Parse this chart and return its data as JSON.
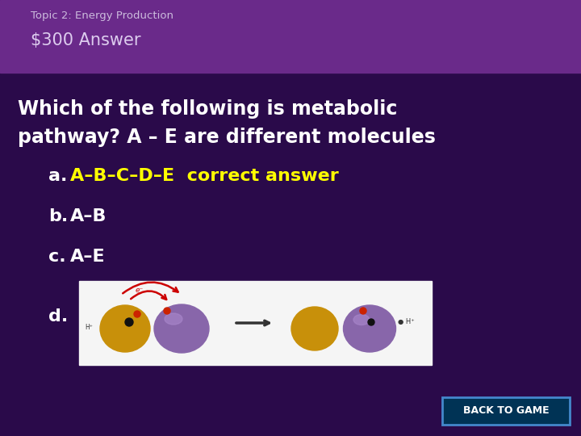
{
  "bg_color": "#2a0a4a",
  "header_band_color": "#6a2a8a",
  "header_text1": "Topic 2: Energy Production",
  "header_text2": "$300 Answer",
  "header_text1_color": "#ccbbdd",
  "header_text2_color": "#ddccee",
  "question_line1": "Which of the following is metabolic",
  "question_line2": "pathway? A – E are different molecules",
  "question_color": "#ffffff",
  "opt_a_label": "a.",
  "opt_a_chain": "A–B–C–D–E",
  "opt_a_suffix": "  correct answer",
  "opt_a_yellow": "#ffff00",
  "opt_b_label": "b.",
  "opt_b_chain": "A–B",
  "opt_c_label": "c.",
  "opt_c_chain": "A–E",
  "opt_d_label": "d.",
  "white": "#ffffff",
  "back_btn_text": "BACK TO GAME",
  "back_btn_bg": "#003355",
  "back_btn_border": "#4488cc",
  "back_btn_color": "#ffffff"
}
